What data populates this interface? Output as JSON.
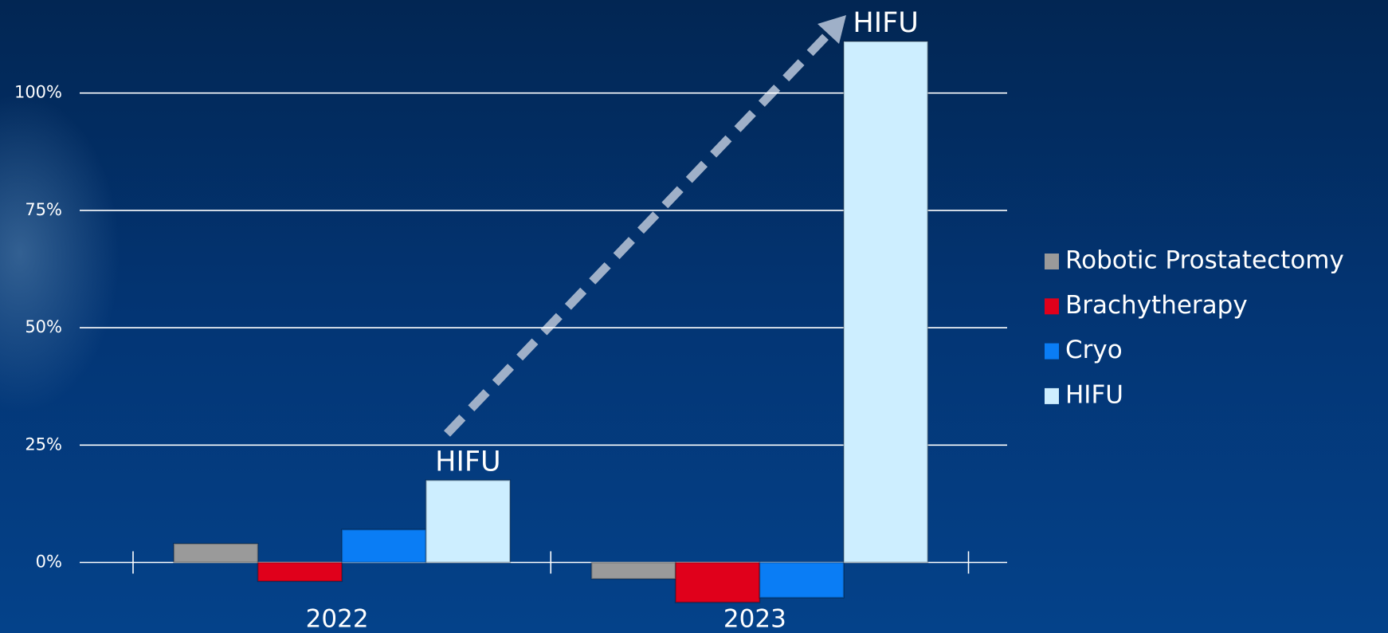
{
  "chart_data": {
    "type": "bar",
    "categories": [
      "2022",
      "2023"
    ],
    "series": [
      {
        "name": "Robotic Prostatectomy",
        "color": "#9a9a9a",
        "values": [
          4,
          -3.5
        ]
      },
      {
        "name": "Brachytherapy",
        "color": "#e0001b",
        "values": [
          -4,
          -8.5
        ]
      },
      {
        "name": "Cryo",
        "color": "#0a7df5",
        "values": [
          7,
          -7.5
        ]
      },
      {
        "name": "HIFU",
        "color": "#cdeeff",
        "values": [
          17.5,
          111
        ]
      }
    ],
    "annotations": [
      "HIFU",
      "HIFU"
    ],
    "ylim": [
      -15,
      115
    ],
    "yticks": [
      {
        "value": 0,
        "label": "0%"
      },
      {
        "value": 25,
        "label": "25%"
      },
      {
        "value": 50,
        "label": "50%"
      },
      {
        "value": 75,
        "label": "75%"
      },
      {
        "value": 100,
        "label": "100%"
      }
    ],
    "grid": true,
    "legend": "right"
  }
}
